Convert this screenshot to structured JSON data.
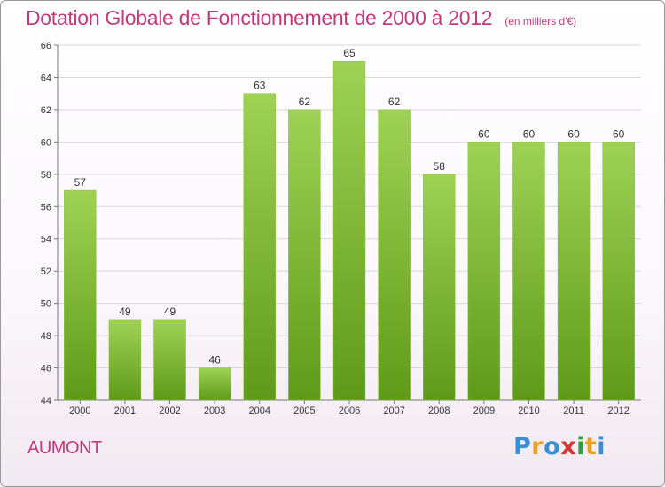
{
  "title": "Dotation Globale de Fonctionnement de 2000 à 2012",
  "subtitle": "(en milliers d'€)",
  "commune": "AUMONT",
  "logo": {
    "letters": [
      "P",
      "r",
      "o",
      "x",
      "i",
      "t",
      "i"
    ],
    "colors": [
      "#3a8fd1",
      "#e8a21b",
      "#3a8fd1",
      "#d4392f",
      "#2f9e44",
      "#e8a21b",
      "#3a8fd1"
    ]
  },
  "colors": {
    "bar_top": "#9fd254",
    "bar_bottom": "#5e9a18",
    "title": "#c23a7a"
  },
  "chart_data": {
    "type": "bar",
    "categories": [
      "2000",
      "2001",
      "2002",
      "2003",
      "2004",
      "2005",
      "2006",
      "2007",
      "2008",
      "2009",
      "2010",
      "2011",
      "2012"
    ],
    "values": [
      57,
      49,
      49,
      46,
      63,
      62,
      65,
      62,
      58,
      60,
      60,
      60,
      60
    ],
    "yticks": [
      "44",
      "46",
      "48",
      "50",
      "52",
      "54",
      "56",
      "58",
      "60",
      "62",
      "64",
      "66"
    ],
    "ylim": [
      44,
      66
    ],
    "grid": true,
    "title": "Dotation Globale de Fonctionnement de 2000 à 2012",
    "xlabel": "",
    "ylabel": ""
  }
}
